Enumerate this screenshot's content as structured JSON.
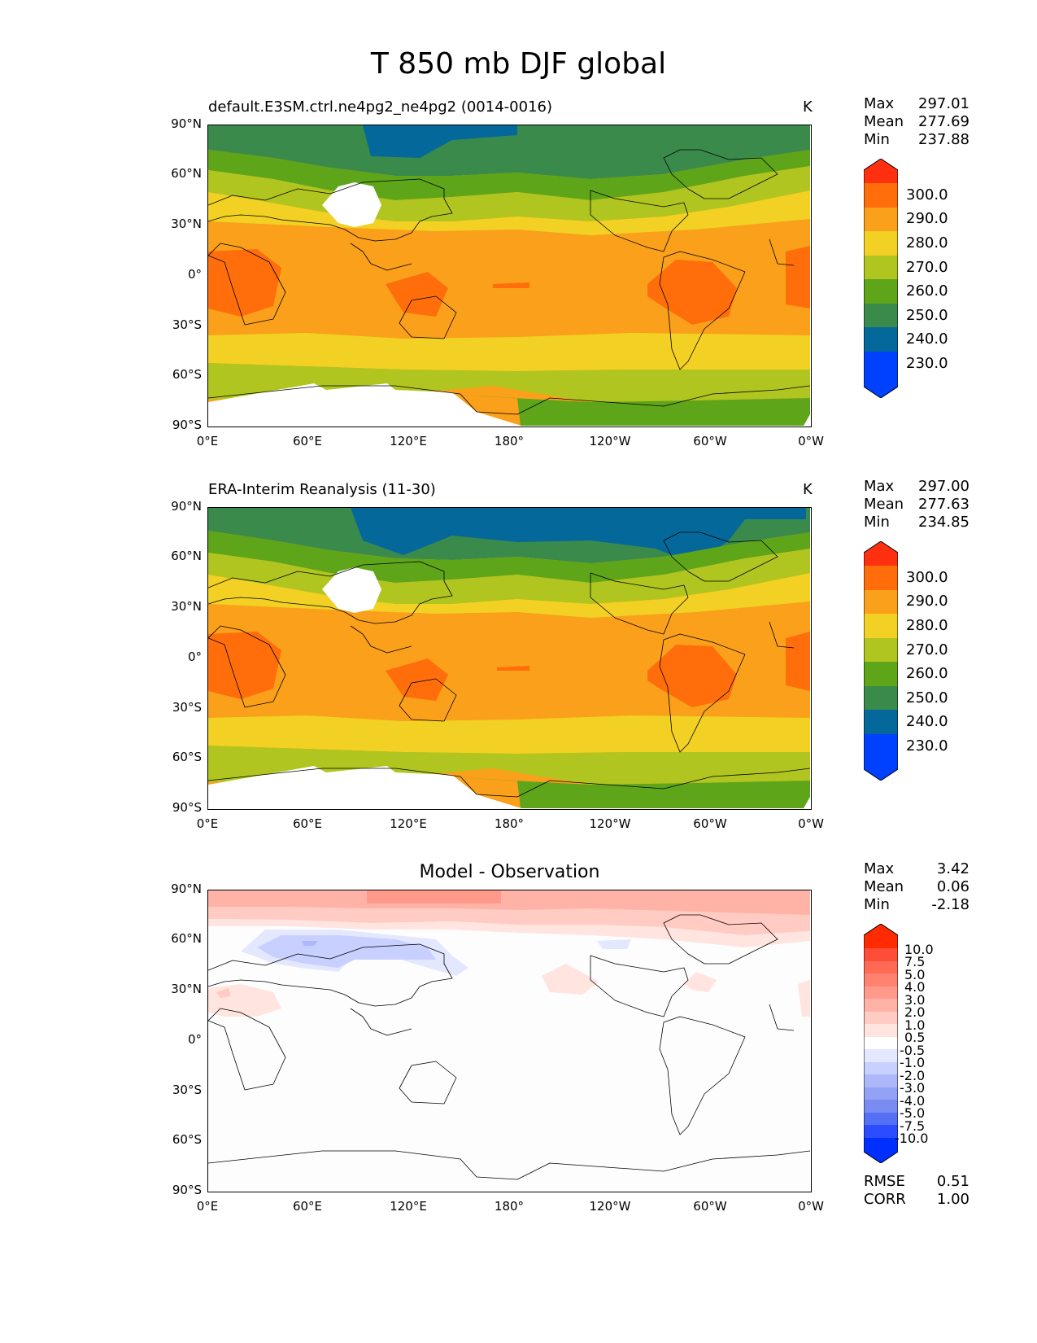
{
  "figure_title": "T 850 mb DJF global",
  "x_ticks": [
    "0°E",
    "60°E",
    "120°E",
    "180°",
    "120°W",
    "60°W",
    "0°W"
  ],
  "y_ticks": [
    "90°N",
    "60°N",
    "30°N",
    "0°",
    "30°S",
    "60°S",
    "90°S"
  ],
  "panels": [
    {
      "title": "default.E3SM.ctrl.ne4pg2_ne4pg2 (0014-0016)",
      "units": "K",
      "stats": {
        "max_label": "Max",
        "max": "297.01",
        "mean_label": "Mean",
        "mean": "277.69",
        "min_label": "Min",
        "min": "237.88"
      },
      "colorbar_labels": [
        "300.0",
        "290.0",
        "280.0",
        "270.0",
        "260.0",
        "250.0",
        "240.0",
        "230.0"
      ]
    },
    {
      "title": "ERA-Interim Reanalysis (11-30)",
      "units": "K",
      "stats": {
        "max_label": "Max",
        "max": "297.00",
        "mean_label": "Mean",
        "mean": "277.63",
        "min_label": "Min",
        "min": "234.85"
      },
      "colorbar_labels": [
        "300.0",
        "290.0",
        "280.0",
        "270.0",
        "260.0",
        "250.0",
        "240.0",
        "230.0"
      ]
    },
    {
      "title": "Model - Observation",
      "units": "",
      "stats": {
        "max_label": "Max",
        "max": "3.42",
        "mean_label": "Mean",
        "mean": "0.06",
        "min_label": "Min",
        "min": "-2.18"
      },
      "colorbar_labels": [
        "10.0",
        "7.5",
        "5.0",
        "4.0",
        "3.0",
        "2.0",
        "1.0",
        "0.5",
        "-0.5",
        "-1.0",
        "-2.0",
        "-3.0",
        "-4.0",
        "-5.0",
        "-7.5",
        "-10.0"
      ],
      "metrics": {
        "rmse_label": "RMSE",
        "rmse": "0.51",
        "corr_label": "CORR",
        "corr": "1.00"
      }
    }
  ],
  "colors": {
    "temperature_scale": [
      "#ff3010",
      "#ff6e0a",
      "#faa01a",
      "#f2d024",
      "#b0c51f",
      "#5ea51a",
      "#3a8a4c",
      "#04689a",
      "#0040ff"
    ],
    "difference_scale": [
      "#ff2a00",
      "#ff4e38",
      "#ff6a55",
      "#ff8270",
      "#ff9a8a",
      "#ffb2a6",
      "#ffcbc2",
      "#ffe4df",
      "#ffffff",
      "#e4e8ff",
      "#c8d0ff",
      "#acb8fa",
      "#93a2f5",
      "#7a8cf2",
      "#5570f5",
      "#2b4dff",
      "#0030ff"
    ]
  }
}
